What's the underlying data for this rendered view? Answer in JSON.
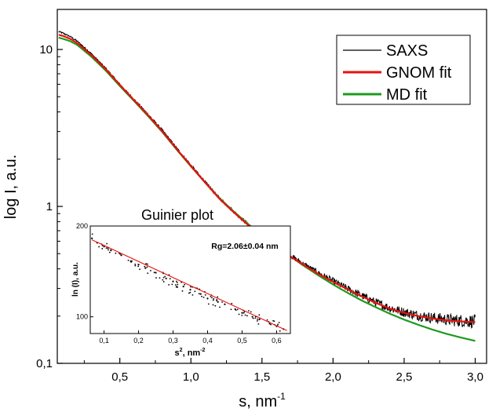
{
  "chart_data": [
    {
      "type": "line",
      "xlabel": "s, nm",
      "xlabel_exponent": "-1",
      "ylabel": "log I, a.u.",
      "yscale": "log",
      "xlim": [
        0.06,
        3.08
      ],
      "ylim": [
        0.1,
        18
      ],
      "x_ticks": [
        0.5,
        1.0,
        1.5,
        2.0,
        2.5,
        3.0
      ],
      "x_tick_labels": [
        "0,5",
        "1,0",
        "1,5",
        "2,0",
        "2,5",
        "3,0"
      ],
      "y_ticks": [
        0.1,
        1,
        10
      ],
      "y_tick_labels": [
        "0,1",
        "1",
        "10"
      ],
      "grid": false,
      "legend_position": "top-right",
      "series": [
        {
          "name": "SAXS",
          "color": "#000000",
          "style": "noisy",
          "x": [
            0.07,
            0.1,
            0.15,
            0.2,
            0.3,
            0.4,
            0.5,
            0.6,
            0.7,
            0.8,
            0.9,
            1.0,
            1.1,
            1.2,
            1.3,
            1.4,
            1.5,
            1.6,
            1.7,
            1.8,
            1.9,
            2.0,
            2.1,
            2.2,
            2.3,
            2.4,
            2.5,
            2.6,
            2.7,
            2.8,
            2.9,
            3.0
          ],
          "y": [
            13.0,
            12.7,
            12.1,
            11.3,
            9.4,
            7.6,
            6.0,
            4.8,
            3.85,
            3.05,
            2.35,
            1.83,
            1.43,
            1.13,
            0.93,
            0.77,
            0.65,
            0.56,
            0.485,
            0.425,
            0.375,
            0.335,
            0.3,
            0.27,
            0.245,
            0.225,
            0.212,
            0.202,
            0.195,
            0.19,
            0.187,
            0.185
          ]
        },
        {
          "name": "GNOM fit",
          "color": "#e8120c",
          "style": "smooth",
          "x": [
            0.07,
            0.1,
            0.15,
            0.2,
            0.3,
            0.4,
            0.5,
            0.6,
            0.7,
            0.8,
            0.9,
            1.0,
            1.1,
            1.2,
            1.3,
            1.4,
            1.5,
            1.6,
            1.7,
            1.8,
            1.9,
            2.0,
            2.1,
            2.2,
            2.3,
            2.4,
            2.5,
            2.6,
            2.7,
            2.8,
            2.9,
            3.0
          ],
          "y": [
            12.4,
            12.2,
            11.7,
            11.0,
            9.2,
            7.5,
            5.95,
            4.75,
            3.8,
            3.0,
            2.32,
            1.81,
            1.42,
            1.12,
            0.92,
            0.765,
            0.645,
            0.555,
            0.48,
            0.42,
            0.37,
            0.33,
            0.297,
            0.268,
            0.243,
            0.223,
            0.21,
            0.2,
            0.193,
            0.188,
            0.185,
            0.183
          ]
        },
        {
          "name": "MD fit",
          "color": "#1e9a1e",
          "style": "smooth",
          "x": [
            0.07,
            0.1,
            0.15,
            0.2,
            0.3,
            0.4,
            0.5,
            0.6,
            0.7,
            0.8,
            0.9,
            1.0,
            1.1,
            1.2,
            1.3,
            1.4,
            1.5,
            1.6,
            1.7,
            1.8,
            1.9,
            2.0,
            2.1,
            2.2,
            2.3,
            2.4,
            2.5,
            2.6,
            2.7,
            2.8,
            2.9,
            3.0
          ],
          "y": [
            11.9,
            11.7,
            11.3,
            10.7,
            9.0,
            7.35,
            5.85,
            4.7,
            3.75,
            2.97,
            2.3,
            1.8,
            1.42,
            1.13,
            0.93,
            0.775,
            0.655,
            0.56,
            0.48,
            0.415,
            0.362,
            0.318,
            0.282,
            0.252,
            0.228,
            0.207,
            0.19,
            0.176,
            0.164,
            0.154,
            0.146,
            0.139
          ]
        }
      ]
    },
    {
      "type": "scatter",
      "title": "Guinier plot",
      "xlabel": "s",
      "xlabel_superscript": "2",
      "xlabel_unit": ", nm",
      "xlabel_unit_exponent": "-2",
      "ylabel": "ln (I), a.u.",
      "yscale": "log",
      "annotation": "Rg=2.06±0.04 nm",
      "xlim": [
        0.06,
        0.64
      ],
      "ylim": [
        88,
        200
      ],
      "x_ticks": [
        0.1,
        0.2,
        0.3,
        0.4,
        0.5,
        0.6
      ],
      "x_tick_labels": [
        "0,1",
        "0,2",
        "0,3",
        "0,4",
        "0,5",
        "0,6"
      ],
      "y_ticks": [
        100,
        200
      ],
      "y_tick_labels": [
        "100",
        "200"
      ],
      "series": [
        {
          "name": "",
          "color": "#000000",
          "style": "points",
          "x": [
            0.065,
            0.08,
            0.1,
            0.12,
            0.15,
            0.18,
            0.2,
            0.22,
            0.25,
            0.28,
            0.3,
            0.33,
            0.35,
            0.38,
            0.4,
            0.43,
            0.45,
            0.48,
            0.5,
            0.53,
            0.55,
            0.58,
            0.6,
            0.62
          ],
          "y": [
            182,
            176,
            171,
            166,
            160,
            153,
            149,
            145,
            140,
            134,
            131,
            126,
            123,
            119,
            115,
            112,
            110,
            106,
            103,
            100,
            98,
            95,
            93,
            91
          ]
        },
        {
          "name": "",
          "color": "#e8120c",
          "style": "line",
          "x": [
            0.065,
            0.63
          ],
          "y": [
            180,
            90
          ]
        }
      ]
    }
  ]
}
